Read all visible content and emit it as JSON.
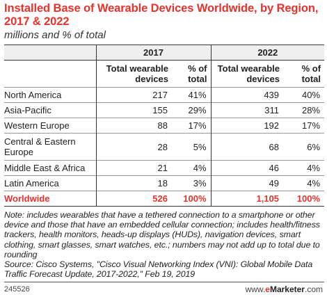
{
  "title": "Installed Base of Wearable Devices Worldwide, by Region, 2017 & 2022",
  "subtitle": "millions and % of total",
  "years": [
    "2017",
    "2022"
  ],
  "column_headers": {
    "total": "Total wearable devices",
    "pct": "% of total"
  },
  "rows": [
    {
      "region": "North America",
      "v2017": "217",
      "p2017": "41%",
      "v2022": "439",
      "p2022": "40%"
    },
    {
      "region": "Asia-Pacific",
      "v2017": "155",
      "p2017": "29%",
      "v2022": "311",
      "p2022": "28%"
    },
    {
      "region": "Western Europe",
      "v2017": "88",
      "p2017": "17%",
      "v2022": "192",
      "p2022": "17%"
    },
    {
      "region": "Central & Eastern Europe",
      "v2017": "28",
      "p2017": "5%",
      "v2022": "68",
      "p2022": "6%"
    },
    {
      "region": "Middle East & Africa",
      "v2017": "21",
      "p2017": "4%",
      "v2022": "46",
      "p2022": "4%"
    },
    {
      "region": "Latin America",
      "v2017": "18",
      "p2017": "3%",
      "v2022": "49",
      "p2022": "4%"
    }
  ],
  "total": {
    "region": "Worldwide",
    "v2017": "526",
    "p2017": "100%",
    "v2022": "1,105",
    "p2022": "100%"
  },
  "note": "Note: includes wearables that have a tethered connection to a smartphone or other device and those that have an embedded cellular connection; includes health/fitness trackers, health monitors, heads-up displays (HUDs), navigation devices, smart clothing, smart glasses, smart watches, etc.; numbers may not add up to total due to rounding",
  "source": "Source: Cisco Systems, \"Cisco Visual Networking Index (VNI): Global Mobile Data Traffic Forecast Update, 2017-2022,\" Feb 19, 2019",
  "chart_id": "245526",
  "brand": {
    "prefix": "www.",
    "e": "e",
    "name": "Marketer",
    "suffix": ".com"
  },
  "colors": {
    "accent": "#e8322b",
    "header_bg": "#efefef"
  }
}
